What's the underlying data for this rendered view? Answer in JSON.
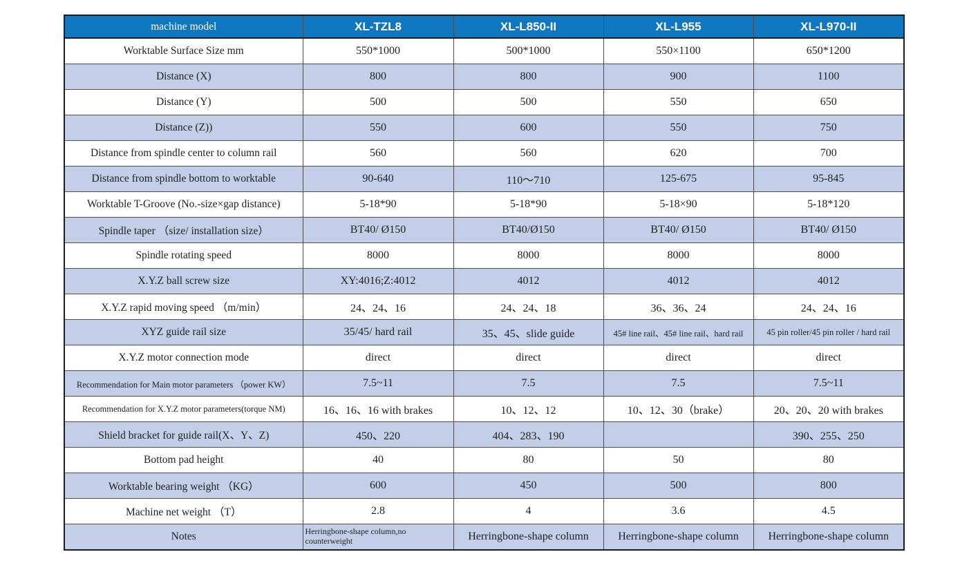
{
  "table": {
    "columns": [
      "machine model",
      "XL-TZL8",
      "XL-L850-II",
      "XL-L955",
      "XL-L970-II"
    ],
    "rows": [
      {
        "label": "Worktable Surface Size mm",
        "values": [
          "550*1000",
          "500*1000",
          "550×1100",
          "650*1200"
        ]
      },
      {
        "label": "Distance (X)",
        "values": [
          "800",
          "800",
          "900",
          "1100"
        ]
      },
      {
        "label": "Distance (Y)",
        "values": [
          "500",
          "500",
          "550",
          "650"
        ]
      },
      {
        "label": "Distance (Z))",
        "values": [
          "550",
          "600",
          "550",
          "750"
        ]
      },
      {
        "label": "Distance from spindle center to column rail",
        "values": [
          "560",
          "560",
          "620",
          "700"
        ]
      },
      {
        "label": "Distance from spindle bottom to worktable",
        "values": [
          "90-640",
          "110～710",
          "125-675",
          "95-845"
        ]
      },
      {
        "label": "Worktable T-Groove (No.-size×gap distance)",
        "values": [
          "5-18*90",
          "5-18*90",
          "5-18×90",
          "5-18*120"
        ]
      },
      {
        "label": "Spindle taper （size/ installation size）",
        "values": [
          "BT40/ Ø150",
          "BT40/Ø150",
          "BT40/ Ø150",
          "BT40/ Ø150"
        ]
      },
      {
        "label": "Spindle rotating speed",
        "values": [
          "8000",
          "8000",
          "8000",
          "8000"
        ]
      },
      {
        "label": "X.Y.Z ball screw size",
        "values": [
          "XY:4016;Z:4012",
          "4012",
          "4012",
          "4012"
        ]
      },
      {
        "label": "X.Y.Z rapid moving speed （m/min）",
        "values": [
          "24、24、16",
          "24、24、18",
          "36、36、24",
          "24、24、16"
        ]
      },
      {
        "label": "XYZ guide rail size",
        "values": [
          "35/45/ hard rail",
          "35、45、slide guide",
          "45# line rail、45# line rail、hard rail",
          "45 pin roller/45 pin roller / hard rail"
        ]
      },
      {
        "label": "X.Y.Z motor connection mode",
        "values": [
          "direct",
          "direct",
          "direct",
          "direct"
        ]
      },
      {
        "label": "Recommendation for Main motor parameters （power KW）",
        "values": [
          "7.5~11",
          "7.5",
          "7.5",
          "7.5~11"
        ]
      },
      {
        "label": "Recommendation for X.Y.Z motor parameters(torque NM)",
        "values": [
          "16、16、16 with brakes",
          "10、12、12",
          "10、12、30（brake）",
          "20、20、20 with brakes"
        ]
      },
      {
        "label": "Shield bracket for guide rail(X、Y、Z)",
        "values": [
          "450、220",
          "404、283、190",
          "",
          "390、255、250"
        ]
      },
      {
        "label": "Bottom pad height",
        "values": [
          "40",
          "80",
          "50",
          "80"
        ]
      },
      {
        "label": "Worktable bearing weight （KG）",
        "values": [
          "600",
          "450",
          "500",
          "800"
        ]
      },
      {
        "label": "Machine net weight （T）",
        "values": [
          "2.8",
          "4",
          "3.6",
          "4.5"
        ]
      },
      {
        "label": "Notes",
        "values": [
          "Herringbone-shape column,no counterweight",
          "Herringbone-shape column",
          "Herringbone-shape column",
          "Herringbone-shape column"
        ]
      }
    ],
    "colors": {
      "header_bg": "#0F76C1",
      "header_text": "#FFFFFF",
      "alt_row_bg": "#C3CFE9",
      "row_bg": "#FFFFFF",
      "border": "#4D4D4D",
      "outer_border": "#1C1C1C",
      "text": "#1F1F1F"
    }
  }
}
